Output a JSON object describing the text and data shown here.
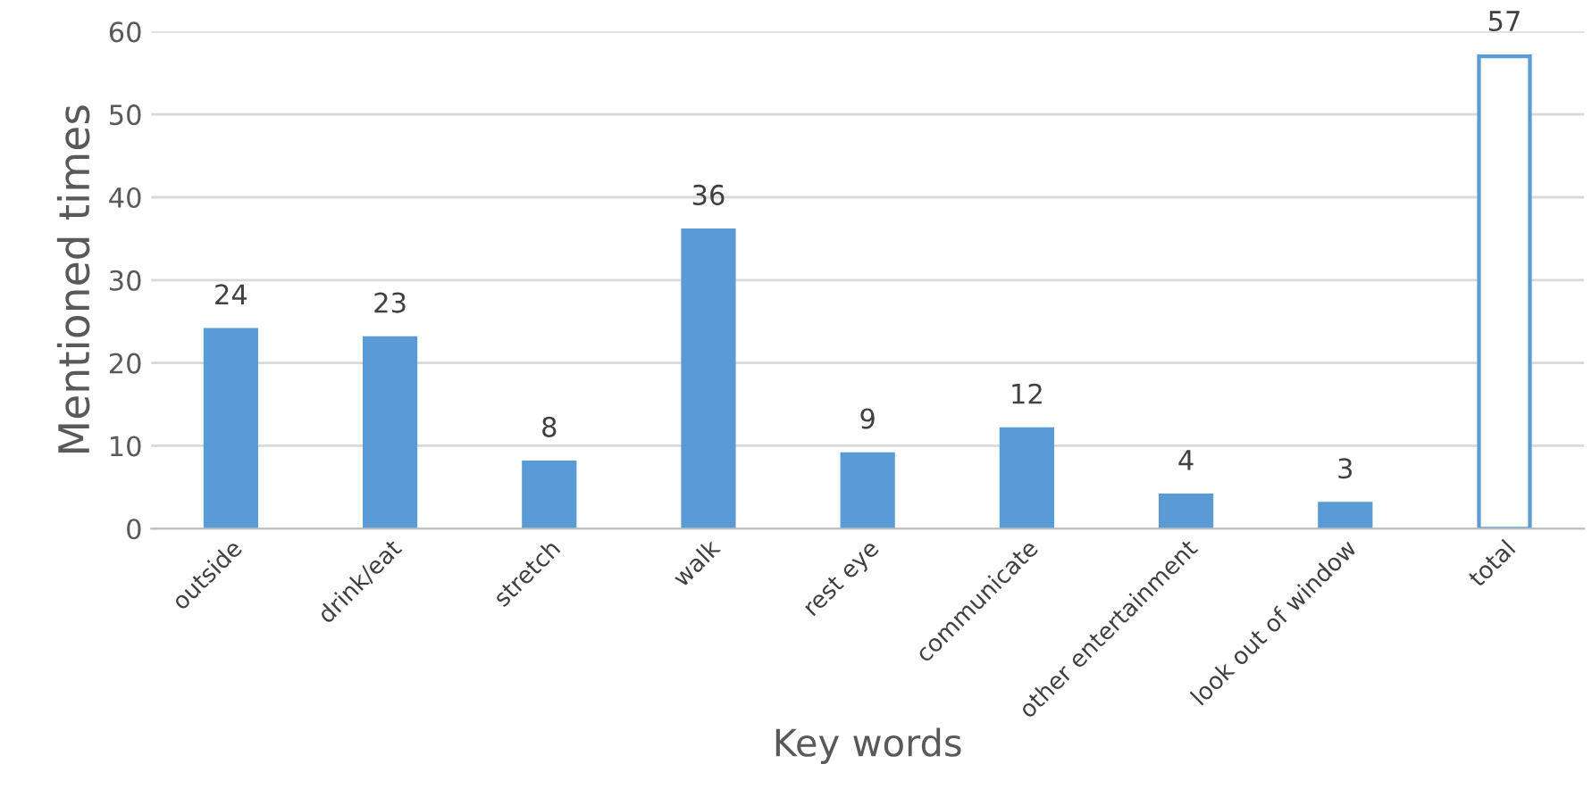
{
  "chart_data": {
    "type": "bar",
    "xlabel": "Key words",
    "ylabel": "Mentioned times",
    "categories": [
      "outside",
      "drink/eat",
      "stretch",
      "walk",
      "rest eye",
      "communicate",
      "other entertainment",
      "look out of window",
      "total"
    ],
    "series": [
      {
        "color": "#5b9bd5",
        "values": [
          24,
          23,
          8,
          36,
          9,
          12,
          4,
          3,
          57
        ],
        "colors": [
          "#5b9bd5",
          "#5b9bd5",
          "#5b9bd5",
          "#5b9bd5",
          "#5b9bd5",
          "#5b9bd5",
          "#5b9bd5",
          "#5b9bd5",
          "#ffffff"
        ]
      }
    ],
    "ylim": [
      0,
      60
    ],
    "yticks": [
      0,
      10,
      20,
      30,
      40,
      50,
      60
    ],
    "grid": "y",
    "data_labels": true
  }
}
